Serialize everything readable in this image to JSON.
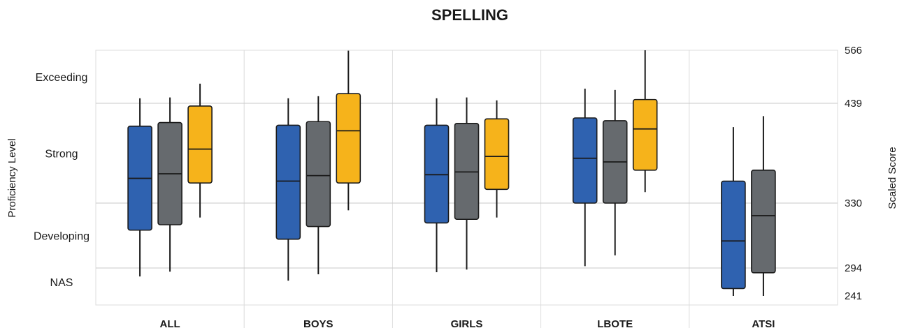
{
  "chart_data": {
    "type": "box",
    "title": "SPELLING",
    "ylabel_left": "Proficiency Level",
    "ylabel_right": "Scaled Score",
    "categories": [
      "ALL",
      "BOYS",
      "GIRLS",
      "LBOTE",
      "ATSI"
    ],
    "proficiency_levels": [
      {
        "label": "Exceeding",
        "at": 502.5
      },
      {
        "label": "Strong",
        "at": 384.5
      },
      {
        "label": "Developing",
        "at": 312
      },
      {
        "label": "NAS",
        "at": 267.5
      }
    ],
    "scaled_score_ticks": [
      {
        "label": "566",
        "value": 566
      },
      {
        "label": "439",
        "value": 439
      },
      {
        "label": "330",
        "value": 330
      },
      {
        "label": "294",
        "value": 294
      },
      {
        "label": "241",
        "value": 241
      }
    ],
    "band_boundaries": [
      439,
      330,
      294
    ],
    "series": [
      {
        "color": "#2f62b0",
        "boxes": [
          {
            "category": "ALL",
            "min": 278,
            "q1": 315,
            "median": 357,
            "q3": 414,
            "max": 451
          },
          {
            "category": "BOYS",
            "min": 270,
            "q1": 310,
            "median": 354,
            "q3": 415,
            "max": 451
          },
          {
            "category": "GIRLS",
            "min": 286,
            "q1": 319,
            "median": 361,
            "q3": 415,
            "max": 451
          },
          {
            "category": "LBOTE",
            "min": 295,
            "q1": 330,
            "median": 379,
            "q3": 423,
            "max": 474
          },
          {
            "category": "ATSI",
            "min": 241,
            "q1": 255,
            "median": 309,
            "q3": 354,
            "max": 413
          }
        ]
      },
      {
        "color": "#666a6e",
        "boxes": [
          {
            "category": "ALL",
            "min": 287,
            "q1": 318,
            "median": 362,
            "q3": 418,
            "max": 453
          },
          {
            "category": "BOYS",
            "min": 282,
            "q1": 317,
            "median": 360,
            "q3": 419,
            "max": 456
          },
          {
            "category": "GIRLS",
            "min": 291,
            "q1": 321,
            "median": 364,
            "q3": 417,
            "max": 453
          },
          {
            "category": "LBOTE",
            "min": 301,
            "q1": 330,
            "median": 375,
            "q3": 420,
            "max": 471
          },
          {
            "category": "ATSI",
            "min": 241,
            "q1": 285,
            "median": 323,
            "q3": 366,
            "max": 425
          }
        ]
      },
      {
        "color": "#f6b31b",
        "boxes": [
          {
            "category": "ALL",
            "min": 322,
            "q1": 352,
            "median": 389,
            "q3": 436,
            "max": 486
          },
          {
            "category": "BOYS",
            "min": 326,
            "q1": 352,
            "median": 409,
            "q3": 462,
            "max": 565
          },
          {
            "category": "GIRLS",
            "min": 322,
            "q1": 345,
            "median": 381,
            "q3": 422,
            "max": 446
          },
          {
            "category": "LBOTE",
            "min": 342,
            "q1": 366,
            "median": 411,
            "q3": 448,
            "max": 566
          }
        ]
      }
    ],
    "grid": true
  }
}
